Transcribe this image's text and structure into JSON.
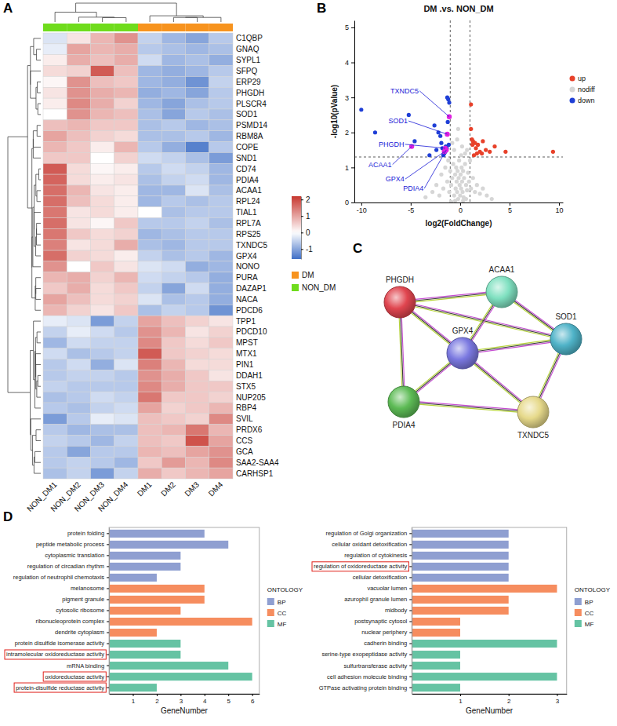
{
  "chart_data": [
    {
      "panel": "A",
      "type": "heatmap",
      "legend": "right",
      "columns": [
        "NON_DM1",
        "NON_DM2",
        "NON_DM3",
        "NON_DM4",
        "DM1",
        "DM2",
        "DM3",
        "DM4"
      ],
      "column_groups": [
        "NON_DM",
        "NON_DM",
        "NON_DM",
        "NON_DM",
        "DM",
        "DM",
        "DM",
        "DM"
      ],
      "series": [
        {
          "name": "DM",
          "color": "#f7931e"
        },
        {
          "name": "NON_DM",
          "color": "#6fdc1c"
        }
      ],
      "rows": [
        "C1QBP",
        "GNAQ",
        "SYPL1",
        "SFPQ",
        "ERP29",
        "PHGDH",
        "PLSCR4",
        "SOD1",
        "PSMD14",
        "RBM8A",
        "COPE",
        "SND1",
        "CD74",
        "PDIA4",
        "ACAA1",
        "RPL24",
        "TIAL1",
        "RPL7A",
        "RPS25",
        "TXNDC5",
        "GPX4",
        "NONO",
        "PURA",
        "DAZAP1",
        "NACA",
        "PDCD6",
        "TPP1",
        "PDCD10",
        "MPST",
        "MTX1",
        "PIN1",
        "DDAH1",
        "STX5",
        "NUP205",
        "RBP4",
        "SVIL",
        "PRDX6",
        "CCS",
        "GCA",
        "SAA2-SAA4",
        "CARHSP1"
      ],
      "values": [
        [
          -0.3,
          0.3,
          0.8,
          1.2,
          -0.5,
          -0.8,
          -1.0,
          -0.6
        ],
        [
          -0.2,
          1.0,
          0.8,
          0.9,
          -0.6,
          -0.7,
          -0.8,
          -0.7
        ],
        [
          0.2,
          0.9,
          0.7,
          0.9,
          -0.4,
          -0.8,
          -0.7,
          -0.9
        ],
        [
          0.4,
          0.5,
          1.8,
          0.7,
          -0.8,
          -0.9,
          -0.8,
          -0.6
        ],
        [
          0.1,
          1.2,
          0.7,
          0.6,
          -0.8,
          -0.9,
          -1.2,
          -0.5
        ],
        [
          0.3,
          1.2,
          0.9,
          0.8,
          -0.9,
          -0.8,
          -1.0,
          -0.6
        ],
        [
          0.2,
          1.3,
          0.9,
          0.5,
          -0.8,
          -1.0,
          -0.7,
          -0.6
        ],
        [
          0.0,
          1.2,
          0.8,
          0.7,
          -0.7,
          -1.0,
          -0.6,
          -0.7
        ],
        [
          0.7,
          0.8,
          0.6,
          0.6,
          -0.7,
          -0.6,
          -0.8,
          -0.7
        ],
        [
          1.0,
          0.7,
          0.5,
          0.4,
          -0.7,
          -0.7,
          -0.6,
          -0.8
        ],
        [
          0.8,
          0.6,
          0.2,
          0.8,
          -0.6,
          -0.9,
          -1.4,
          -0.6
        ],
        [
          0.6,
          0.6,
          0.0,
          0.5,
          -0.4,
          -0.5,
          -0.7,
          -1.1
        ],
        [
          1.8,
          0.4,
          0.1,
          0.2,
          -0.6,
          -0.4,
          -0.5,
          -0.8
        ],
        [
          1.7,
          0.4,
          0.2,
          0.3,
          -0.7,
          -0.5,
          -0.4,
          -0.8
        ],
        [
          1.6,
          0.8,
          0.3,
          0.2,
          -0.8,
          -0.8,
          -0.3,
          -0.7
        ],
        [
          1.6,
          0.7,
          0.4,
          0.2,
          -0.8,
          -0.6,
          -0.7,
          -0.6
        ],
        [
          1.5,
          0.3,
          0.4,
          0.2,
          0.0,
          -0.7,
          -0.6,
          -0.6
        ],
        [
          1.6,
          0.3,
          0.1,
          0.6,
          -0.6,
          -0.6,
          -0.5,
          -0.7
        ],
        [
          1.5,
          0.6,
          0.4,
          0.5,
          -0.8,
          -0.7,
          -0.6,
          -0.6
        ],
        [
          1.4,
          0.3,
          0.4,
          0.9,
          -0.7,
          -0.8,
          -0.6,
          -0.6
        ],
        [
          1.6,
          0.5,
          0.4,
          0.2,
          -0.5,
          -0.7,
          -0.6,
          -0.8
        ],
        [
          1.2,
          0.0,
          0.6,
          0.3,
          -0.3,
          -0.4,
          -0.9,
          -0.8
        ],
        [
          0.8,
          0.9,
          0.5,
          0.8,
          -0.4,
          -0.5,
          -0.6,
          -0.9
        ],
        [
          0.6,
          0.9,
          0.4,
          0.6,
          -0.5,
          -1.0,
          -0.4,
          -0.9
        ],
        [
          1.0,
          0.7,
          0.4,
          0.5,
          -0.3,
          -0.7,
          -0.6,
          -0.9
        ],
        [
          0.8,
          0.5,
          0.3,
          0.6,
          -0.7,
          -0.5,
          -0.6,
          -1.2
        ],
        [
          -0.2,
          -0.3,
          -1.1,
          -0.5,
          1.0,
          0.7,
          0.5,
          0.3
        ],
        [
          -0.5,
          -0.2,
          -0.4,
          -0.6,
          1.2,
          0.8,
          0.3,
          0.5
        ],
        [
          -0.8,
          -0.4,
          -0.5,
          -0.5,
          1.3,
          0.6,
          0.4,
          0.6
        ],
        [
          -0.4,
          -0.7,
          -0.6,
          -0.5,
          1.8,
          0.6,
          0.5,
          0.4
        ],
        [
          -0.6,
          -0.4,
          -0.9,
          -0.3,
          1.4,
          0.8,
          0.4,
          0.4
        ],
        [
          -0.6,
          -0.5,
          -0.5,
          -0.6,
          1.2,
          0.9,
          0.6,
          0.3
        ],
        [
          -0.5,
          -0.6,
          -0.6,
          -0.6,
          1.3,
          0.9,
          0.6,
          0.6
        ],
        [
          -0.7,
          -0.6,
          -0.4,
          -0.5,
          1.5,
          0.6,
          0.6,
          0.5
        ],
        [
          -0.6,
          -0.7,
          -0.5,
          -0.4,
          1.0,
          0.5,
          0.6,
          0.8
        ],
        [
          -1.1,
          -0.6,
          -0.2,
          -0.3,
          0.7,
          0.6,
          0.5,
          1.3
        ],
        [
          -0.6,
          -0.8,
          -0.7,
          -0.7,
          0.7,
          0.8,
          1.5,
          0.8
        ],
        [
          -0.5,
          -0.6,
          -0.8,
          -0.5,
          0.7,
          0.6,
          1.9,
          1.0
        ],
        [
          -0.6,
          -1.0,
          -0.6,
          -0.6,
          0.8,
          0.7,
          1.0,
          1.2
        ],
        [
          -0.6,
          -0.5,
          -0.6,
          -0.8,
          0.6,
          1.1,
          0.8,
          1.3
        ],
        [
          -0.7,
          -0.5,
          -1.1,
          -0.5,
          0.9,
          0.6,
          0.8,
          1.0
        ]
      ],
      "colorbar": {
        "range": [
          -1.6,
          2.2
        ],
        "mid": 0,
        "ticks": [
          -1,
          0,
          1,
          2
        ],
        "colors": [
          "#3f6fc6",
          "#ffffff",
          "#c7372f"
        ]
      }
    },
    {
      "panel": "B",
      "type": "scatter",
      "title": "DM .vs. NON_DM",
      "x_label": "log2(FoldChange)",
      "y_label": "-log10(pValue)",
      "legend": "right",
      "xlim": [
        -10.7,
        10.4
      ],
      "xticks": [
        -10,
        -5,
        0,
        5,
        10
      ],
      "ylim": [
        0,
        5.2
      ],
      "yticks": [
        0,
        1,
        2,
        3,
        4,
        5
      ],
      "reference_lines": {
        "x": [
          -1,
          1
        ],
        "y": [
          1.3
        ]
      },
      "series": [
        {
          "name": "up",
          "color": "#e8412a",
          "x": [
            1.1,
            1.2,
            1.3,
            1.5,
            1.6,
            1.8,
            2.0,
            2.2,
            1.4,
            1.7,
            2.6,
            3.0,
            3.5,
            4.6,
            9.4,
            1.1,
            1.25,
            2.3
          ],
          "values": [
            2.8,
            1.8,
            1.75,
            1.7,
            1.55,
            1.65,
            1.45,
            1.4,
            1.35,
            1.4,
            1.5,
            1.45,
            1.6,
            1.45,
            1.45,
            2.1,
            1.65,
            1.75
          ]
        },
        {
          "name": "nodiff",
          "color": "#d6d6d6",
          "x": [
            -2.8,
            -2.4,
            -2.1,
            -1.9,
            -1.7,
            -1.5,
            -1.3,
            -1.2,
            -1.1,
            -1.0,
            -0.9,
            -0.8,
            -0.7,
            -0.6,
            -0.5,
            -0.45,
            -0.4,
            -0.35,
            -0.3,
            -0.25,
            -0.2,
            -0.15,
            -0.1,
            -0.05,
            0,
            0.05,
            0.1,
            0.15,
            0.2,
            0.25,
            0.3,
            0.35,
            0.4,
            0.5,
            0.6,
            0.7,
            0.8,
            0.9,
            1.0,
            1.1,
            1.3,
            1.5,
            1.7,
            2.0,
            2.3,
            2.7,
            3.2,
            -3.5,
            -0.6,
            -0.3,
            0.2,
            0.5,
            -0.8,
            0.7,
            -0.2,
            0.1,
            -0.5,
            0.3,
            0.6,
            -0.9
          ],
          "values": [
            0.3,
            0.5,
            0.2,
            0.8,
            0.4,
            1.0,
            0.6,
            1.2,
            0.3,
            0.9,
            0.5,
            0.7,
            1.1,
            0.2,
            0.8,
            0.4,
            1.0,
            0.6,
            0.3,
            0.9,
            0.1,
            0.7,
            1.2,
            0.5,
            0.2,
            0.8,
            0.4,
            1.0,
            0.6,
            0.3,
            0.9,
            0.15,
            0.7,
            1.1,
            0.5,
            0.35,
            0.85,
            0.6,
            1.2,
            0.4,
            0.7,
            0.3,
            0.5,
            0.25,
            0.4,
            0.2,
            0.1,
            0.15,
            1.5,
            1.8,
            1.6,
            1.4,
            1.7,
            1.5,
            2.1,
            1.35,
            0.05,
            0.05,
            0.1,
            0.02
          ]
        },
        {
          "name": "down",
          "color": "#1f3fd6",
          "x": [
            -10.0,
            -8.6,
            -5.2,
            -4.6,
            -3.1,
            -2.6,
            -2.2,
            -2.0,
            -1.9,
            -1.8,
            -1.6,
            -1.4,
            -1.3,
            -1.2,
            -1.1,
            -1.5,
            -1.7,
            -2.4,
            -1.25,
            -1.35,
            -1.15,
            -1.45
          ],
          "values": [
            2.65,
            2.0,
            2.5,
            1.75,
            1.35,
            2.2,
            2.0,
            1.9,
            1.7,
            1.55,
            1.4,
            1.5,
            3.0,
            2.95,
            2.85,
            1.45,
            1.35,
            1.5,
            2.3,
            1.55,
            1.65,
            1.6
          ]
        }
      ],
      "annotations": [
        {
          "text": "TXNDC5",
          "x": -1.1,
          "y": 2.45
        },
        {
          "text": "SOD1",
          "x": -1.3,
          "y": 1.95
        },
        {
          "text": "PHGDH",
          "x": -1.5,
          "y": 1.55
        },
        {
          "text": "ACAA1",
          "x": -4.9,
          "y": 1.6
        },
        {
          "text": "GPX4",
          "x": -1.6,
          "y": 1.45
        },
        {
          "text": "PDIA4",
          "x": -1.4,
          "y": 1.5
        }
      ]
    },
    {
      "panel": "C",
      "type": "network",
      "nodes": [
        {
          "label": "PHGDH",
          "color": "#e0454f"
        },
        {
          "label": "ACAA1",
          "color": "#7fe0c0"
        },
        {
          "label": "SOD1",
          "color": "#4fb3c8"
        },
        {
          "label": "GPX4",
          "color": "#7a78e0"
        },
        {
          "label": "PDIA4",
          "color": "#5dbb55"
        },
        {
          "label": "TXNDC5",
          "color": "#e6d98a"
        }
      ],
      "edges": [
        [
          0,
          1
        ],
        [
          0,
          2
        ],
        [
          0,
          3
        ],
        [
          0,
          4
        ],
        [
          1,
          2
        ],
        [
          1,
          3
        ],
        [
          2,
          3
        ],
        [
          2,
          5
        ],
        [
          3,
          4
        ],
        [
          3,
          5
        ],
        [
          4,
          5
        ]
      ]
    },
    {
      "panel": "D",
      "type": "bar",
      "orientation": "horizontal",
      "legend": "right",
      "legend_title": "ONTOLOGY",
      "x_label": "GeneNumber",
      "xlim": [
        0,
        6.3
      ],
      "xticks": [
        1,
        2,
        3,
        4,
        5,
        6
      ],
      "categories": [
        "protein folding",
        "peptide metabolic process",
        "cytoplasmic translation",
        "regulation of circadian rhythm",
        "regulation of neutrophil chemotaxis",
        "melanosome",
        "pigment granule",
        "cytosolic ribosome",
        "ribonucleoprotein complex",
        "dendrite cytoplasm",
        "protein disulfide isomerase activity",
        "intramolecular oxidoreductase activity",
        "mRNA binding",
        "oxidoreductase activity",
        "protein-disulfide reductase activity"
      ],
      "values": [
        4,
        5,
        3,
        3,
        2,
        4,
        4,
        3,
        6,
        2,
        3,
        3,
        5,
        6,
        2
      ],
      "category_groups": [
        "BP",
        "BP",
        "BP",
        "BP",
        "BP",
        "CC",
        "CC",
        "CC",
        "CC",
        "CC",
        "MF",
        "MF",
        "MF",
        "MF",
        "MF"
      ],
      "boxed": [
        false,
        false,
        false,
        false,
        false,
        false,
        false,
        false,
        false,
        false,
        false,
        true,
        false,
        true,
        true
      ],
      "series": [
        {
          "name": "BP",
          "color": "#8f9fd1"
        },
        {
          "name": "CC",
          "color": "#f68d5f"
        },
        {
          "name": "MF",
          "color": "#65c3a3"
        }
      ]
    },
    {
      "type": "bar",
      "orientation": "horizontal",
      "legend": "right",
      "legend_title": "ONTOLOGY",
      "x_label": "GeneNumber",
      "xlim": [
        0,
        3.2
      ],
      "xticks": [
        1,
        2,
        3
      ],
      "categories": [
        "regulation of Golgi organization",
        "cellular oxidant detoxification",
        "regulation of cytokinesis",
        "regulation of oxidoreductase activity",
        "cellular detoxification",
        "vacuolar lumen",
        "azurophil granule lumen",
        "midbody",
        "postsynaptic cytosol",
        "nuclear periphery",
        "cadherin binding",
        "serine-type exopeptidase activity",
        "sulfurtransferase activity",
        "cell adhesion molecule binding",
        "GTPase activating protein binding"
      ],
      "values": [
        2,
        2,
        2,
        2,
        2,
        3,
        2,
        2,
        1,
        1,
        3,
        1,
        1,
        3,
        1
      ],
      "category_groups": [
        "BP",
        "BP",
        "BP",
        "BP",
        "BP",
        "CC",
        "CC",
        "CC",
        "CC",
        "CC",
        "MF",
        "MF",
        "MF",
        "MF",
        "MF"
      ],
      "boxed": [
        false,
        false,
        false,
        true,
        false,
        false,
        false,
        false,
        false,
        false,
        false,
        false,
        false,
        false,
        false
      ],
      "series": [
        {
          "name": "BP",
          "color": "#8f9fd1"
        },
        {
          "name": "CC",
          "color": "#f68d5f"
        },
        {
          "name": "MF",
          "color": "#65c3a3"
        }
      ]
    }
  ]
}
